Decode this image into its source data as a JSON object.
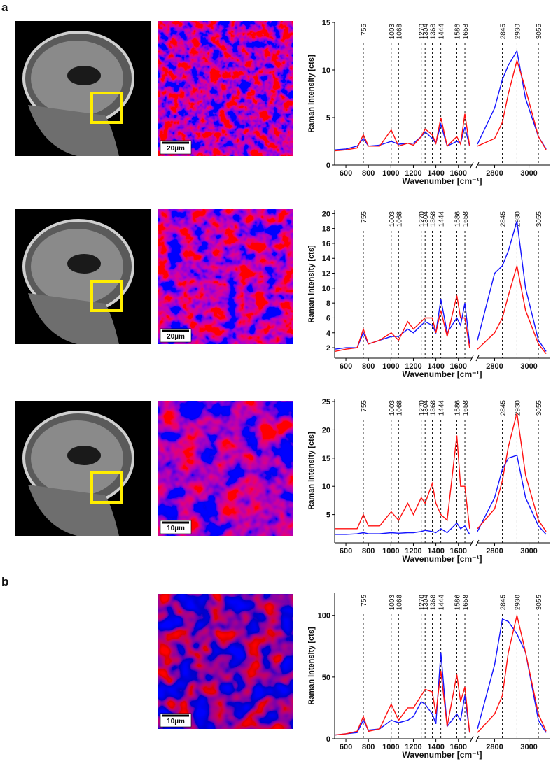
{
  "panel_labels": [
    "a",
    "b"
  ],
  "scale_bars": [
    "20µm",
    "20µm",
    "10µm",
    "10µm"
  ],
  "chart_data": [
    {
      "type": "line",
      "ylabel": "Raman intensity [cts]",
      "xlabel": "Wavenumber [cm⁻¹]",
      "xlim": [
        500,
        3120
      ],
      "xbreak": [
        1720,
        2700
      ],
      "xticks": [
        600,
        800,
        1000,
        1200,
        1400,
        1600,
        2800,
        3000
      ],
      "ylim": [
        0,
        15
      ],
      "yticks": [
        0,
        5,
        10,
        15
      ],
      "peaks": [
        755,
        1003,
        1068,
        1270,
        1304,
        1368,
        1444,
        1586,
        1658,
        2845,
        2930,
        3055
      ],
      "x": [
        500,
        600,
        700,
        755,
        800,
        900,
        1003,
        1068,
        1150,
        1200,
        1270,
        1304,
        1368,
        1400,
        1444,
        1500,
        1586,
        1620,
        1658,
        1700,
        2200,
        2700,
        2800,
        2845,
        2880,
        2930,
        2980,
        3055,
        3100
      ],
      "series": [
        {
          "color": "#1414ff",
          "values": [
            1.6,
            1.7,
            2,
            2.8,
            2,
            2.1,
            2.5,
            2.2,
            2.3,
            2.3,
            3,
            3.5,
            2.8,
            2.3,
            4.3,
            2,
            2.5,
            2.3,
            4,
            2,
            null,
            2.2,
            6,
            9,
            10.5,
            12,
            7,
            3,
            1.7
          ]
        },
        {
          "color": "#ff1010",
          "values": [
            1.5,
            1.6,
            1.8,
            3.2,
            2,
            2,
            3.7,
            2,
            2.3,
            2.1,
            3,
            3.8,
            3.2,
            2.3,
            5,
            2,
            3,
            2.2,
            5.4,
            2,
            null,
            2,
            2.8,
            4.5,
            7.5,
            11,
            8,
            3,
            1.6
          ]
        }
      ]
    },
    {
      "type": "line",
      "ylabel": "Raman intensity [cts]",
      "xlabel": "Wavenumber [cm⁻¹]",
      "xlim": [
        500,
        3120
      ],
      "xbreak": [
        1720,
        2700
      ],
      "xticks": [
        600,
        800,
        1000,
        1200,
        1400,
        1600,
        2800,
        3000
      ],
      "ylim": [
        0.6,
        20.5
      ],
      "yticks": [
        2,
        4,
        6,
        8,
        10,
        12,
        14,
        16,
        18,
        20
      ],
      "peaks": [
        755,
        1003,
        1068,
        1270,
        1304,
        1368,
        1444,
        1586,
        1658,
        2845,
        2930,
        3055
      ],
      "x": [
        500,
        600,
        700,
        755,
        800,
        900,
        1003,
        1068,
        1150,
        1200,
        1270,
        1304,
        1368,
        1400,
        1444,
        1500,
        1586,
        1620,
        1658,
        1700,
        2200,
        2700,
        2800,
        2845,
        2880,
        2930,
        2980,
        3055,
        3100
      ],
      "series": [
        {
          "color": "#1414ff",
          "values": [
            1.8,
            2,
            2,
            4,
            2.5,
            3,
            3.5,
            3.5,
            4.5,
            4,
            5,
            5.5,
            5,
            4,
            8.5,
            4,
            6,
            5,
            8,
            2.5,
            null,
            3,
            12,
            13,
            15,
            19,
            10,
            3,
            1.5
          ]
        },
        {
          "color": "#ff1010",
          "values": [
            1.5,
            1.8,
            2,
            4.5,
            2.5,
            3,
            4,
            3,
            5.5,
            4.5,
            5.5,
            6,
            6,
            4,
            7,
            3.5,
            9,
            6,
            6,
            2,
            null,
            1.8,
            4,
            6,
            9,
            13,
            7,
            2.5,
            1.2
          ]
        }
      ]
    },
    {
      "type": "line",
      "ylabel": "Raman intensity [cts]",
      "xlabel": "Wavenumber [cm⁻¹]",
      "xlim": [
        500,
        3120
      ],
      "xbreak": [
        1720,
        2700
      ],
      "xticks": [
        600,
        800,
        1000,
        1200,
        1400,
        1600,
        2800,
        3000
      ],
      "ylim": [
        0,
        25.5
      ],
      "yticks": [
        5,
        10,
        15,
        20,
        25
      ],
      "peaks": [
        755,
        1003,
        1068,
        1270,
        1304,
        1368,
        1444,
        1586,
        1658,
        2845,
        2930,
        3055
      ],
      "x": [
        500,
        600,
        700,
        755,
        800,
        900,
        1003,
        1068,
        1150,
        1200,
        1270,
        1304,
        1368,
        1400,
        1444,
        1500,
        1586,
        1620,
        1658,
        1700,
        2200,
        2700,
        2800,
        2845,
        2880,
        2930,
        2980,
        3055,
        3100
      ],
      "series": [
        {
          "color": "#1414ff",
          "values": [
            1.5,
            1.5,
            1.6,
            1.8,
            1.6,
            1.6,
            1.8,
            1.7,
            1.8,
            1.8,
            2,
            2.2,
            2,
            1.8,
            2.5,
            1.8,
            3.5,
            2.5,
            3,
            1.5,
            null,
            2,
            8,
            13,
            15,
            15.5,
            8,
            3,
            1.5
          ]
        },
        {
          "color": "#ff1010",
          "values": [
            2.5,
            2.5,
            2.5,
            5,
            3,
            3,
            5.5,
            4,
            7,
            5,
            8,
            7,
            10.5,
            7,
            5,
            4,
            19,
            10,
            10,
            2.5,
            null,
            2.5,
            6,
            11,
            17,
            23,
            12,
            4,
            2
          ]
        }
      ]
    },
    {
      "type": "line",
      "ylabel": "Raman intensity [cts]",
      "xlabel": "Wavenumber [cm⁻¹]",
      "xlim": [
        500,
        3120
      ],
      "xbreak": [
        1720,
        2700
      ],
      "xticks": [
        600,
        800,
        1000,
        1200,
        1400,
        1600,
        2800,
        3000
      ],
      "ylim": [
        0,
        118
      ],
      "yticks": [
        0,
        50,
        100
      ],
      "peaks": [
        755,
        1003,
        1068,
        1270,
        1304,
        1368,
        1444,
        1586,
        1658,
        2845,
        2930,
        3055
      ],
      "x": [
        500,
        600,
        700,
        755,
        800,
        900,
        1003,
        1068,
        1150,
        1200,
        1270,
        1304,
        1368,
        1400,
        1444,
        1500,
        1586,
        1620,
        1658,
        1700,
        2200,
        2700,
        2800,
        2845,
        2880,
        2930,
        2980,
        3055,
        3100
      ],
      "series": [
        {
          "color": "#1414ff",
          "values": [
            3,
            4,
            5,
            15,
            7,
            8,
            15,
            13,
            15,
            18,
            30,
            28,
            20,
            12,
            70,
            10,
            20,
            15,
            35,
            5,
            null,
            8,
            60,
            97,
            95,
            85,
            70,
            15,
            5
          ]
        },
        {
          "color": "#ff1010",
          "values": [
            3,
            4,
            6,
            18,
            6,
            8,
            28,
            15,
            25,
            25,
            35,
            40,
            38,
            20,
            55,
            10,
            52,
            30,
            42,
            5,
            null,
            5,
            20,
            35,
            70,
            100,
            70,
            20,
            6
          ]
        }
      ]
    }
  ]
}
